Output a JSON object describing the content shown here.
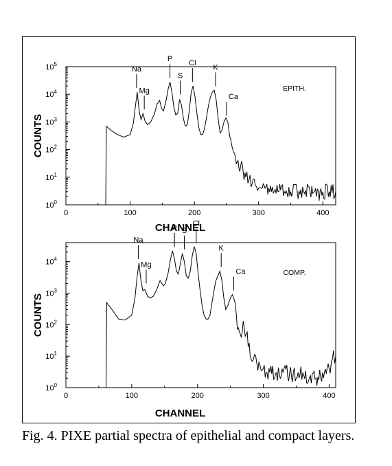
{
  "caption": "Fig. 4. PIXE partial spectra of epithelial and compact layers.",
  "chart_data": [
    {
      "type": "line",
      "panel_label": "EPITH.",
      "xlabel": "CHANNEL",
      "ylabel": "COUNTS",
      "xlim": [
        0,
        420
      ],
      "ylim": [
        1,
        100000
      ],
      "yscale": "log",
      "grid": false,
      "xticks": [
        "0",
        "100",
        "200",
        "300",
        "400"
      ],
      "yticks": [
        {
          "base": "10",
          "exp": "0"
        },
        {
          "base": "10",
          "exp": "1"
        },
        {
          "base": "10",
          "exp": "2"
        },
        {
          "base": "10",
          "exp": "3"
        },
        {
          "base": "10",
          "exp": "4"
        },
        {
          "base": "10",
          "exp": "5"
        }
      ],
      "peaks": [
        {
          "label": "Na",
          "x": 110,
          "y": 12000
        },
        {
          "label": "Mg",
          "x": 122,
          "y": 2000
        },
        {
          "label": "P",
          "x": 162,
          "y": 28000
        },
        {
          "label": "S",
          "x": 178,
          "y": 7000
        },
        {
          "label": "Cl",
          "x": 197,
          "y": 20000
        },
        {
          "label": "K",
          "x": 233,
          "y": 14000
        },
        {
          "label": "Ca",
          "x": 250,
          "y": 1200
        }
      ],
      "series": [
        {
          "x": [
            60,
            62,
            63,
            70,
            80,
            90,
            100,
            105,
            108,
            111,
            114,
            117,
            120,
            123,
            127,
            132,
            138,
            142,
            146,
            149,
            152,
            156,
            159,
            162,
            165,
            168,
            171,
            174,
            177,
            180,
            183,
            186,
            189,
            192,
            195,
            198,
            201,
            204,
            207,
            210,
            213,
            216,
            219,
            222,
            225,
            228,
            231,
            234,
            237,
            240,
            243,
            246,
            249,
            252,
            255,
            258,
            261,
            264,
            268,
            272,
            276,
            280,
            285,
            290,
            295,
            300,
            310,
            320,
            330,
            340,
            350,
            360,
            370,
            380,
            390,
            400,
            410,
            420
          ],
          "y": [
            1,
            1,
            700,
            500,
            350,
            280,
            350,
            900,
            3500,
            12000,
            2500,
            1200,
            2000,
            1100,
            800,
            1000,
            2000,
            4500,
            6000,
            3000,
            2500,
            6000,
            15000,
            28000,
            12000,
            3500,
            1800,
            2000,
            6500,
            4000,
            1300,
            700,
            800,
            2500,
            12000,
            20000,
            8000,
            2000,
            600,
            350,
            350,
            600,
            1500,
            4000,
            8000,
            12000,
            14000,
            6000,
            1300,
            400,
            500,
            1000,
            1400,
            1000,
            300,
            150,
            80,
            50,
            40,
            25,
            15,
            10,
            8,
            6,
            5,
            4,
            4,
            3,
            3,
            3,
            3,
            3,
            3,
            3,
            2,
            3,
            3,
            3
          ]
        }
      ]
    },
    {
      "type": "line",
      "panel_label": "COMP.",
      "xlabel": "CHANNEL",
      "ylabel": "COUNTS",
      "xlim": [
        0,
        410
      ],
      "ylim": [
        1,
        40000
      ],
      "yscale": "log",
      "grid": false,
      "xticks": [
        "0",
        "100",
        "200",
        "300",
        "400"
      ],
      "yticks": [
        {
          "base": "10",
          "exp": "0"
        },
        {
          "base": "10",
          "exp": "1"
        },
        {
          "base": "10",
          "exp": "2"
        },
        {
          "base": "10",
          "exp": "3"
        },
        {
          "base": "10",
          "exp": "4"
        }
      ],
      "peaks": [
        {
          "label": "Na",
          "x": 110,
          "y": 9000
        },
        {
          "label": "Mg",
          "x": 122,
          "y": 1500
        },
        {
          "label": "P",
          "x": 165,
          "y": 22000
        },
        {
          "label": "S",
          "x": 180,
          "y": 18000
        },
        {
          "label": "Cl",
          "x": 198,
          "y": 30000
        },
        {
          "label": "K",
          "x": 236,
          "y": 5000
        },
        {
          "label": "Ca",
          "x": 255,
          "y": 900
        }
      ],
      "series": [
        {
          "x": [
            60,
            61,
            62,
            70,
            80,
            90,
            100,
            105,
            108,
            111,
            114,
            117,
            120,
            124,
            128,
            133,
            138,
            143,
            148,
            151,
            155,
            159,
            162,
            165,
            168,
            171,
            174,
            177,
            180,
            183,
            186,
            189,
            192,
            195,
            198,
            201,
            204,
            207,
            210,
            213,
            216,
            219,
            222,
            225,
            228,
            231,
            234,
            237,
            240,
            243,
            246,
            250,
            253,
            256,
            259,
            262,
            265,
            268,
            271,
            274,
            277,
            280,
            285,
            290,
            295,
            300,
            310,
            320,
            330,
            340,
            350,
            360,
            370,
            380,
            390,
            400,
            405,
            410
          ],
          "y": [
            1,
            1,
            500,
            300,
            150,
            140,
            200,
            700,
            3000,
            9000,
            2500,
            1200,
            1300,
            800,
            700,
            800,
            1300,
            2500,
            1700,
            2000,
            4000,
            12000,
            22000,
            12000,
            5000,
            4000,
            9000,
            18000,
            10000,
            3500,
            3000,
            5000,
            15000,
            30000,
            18000,
            4000,
            1200,
            400,
            200,
            150,
            150,
            200,
            500,
            1200,
            2500,
            3500,
            5000,
            2500,
            700,
            300,
            400,
            700,
            900,
            600,
            200,
            80,
            50,
            60,
            80,
            50,
            20,
            10,
            8,
            6,
            5,
            4,
            3,
            3,
            3,
            3,
            2,
            3,
            2,
            2,
            3,
            4,
            8,
            10
          ]
        }
      ]
    }
  ]
}
